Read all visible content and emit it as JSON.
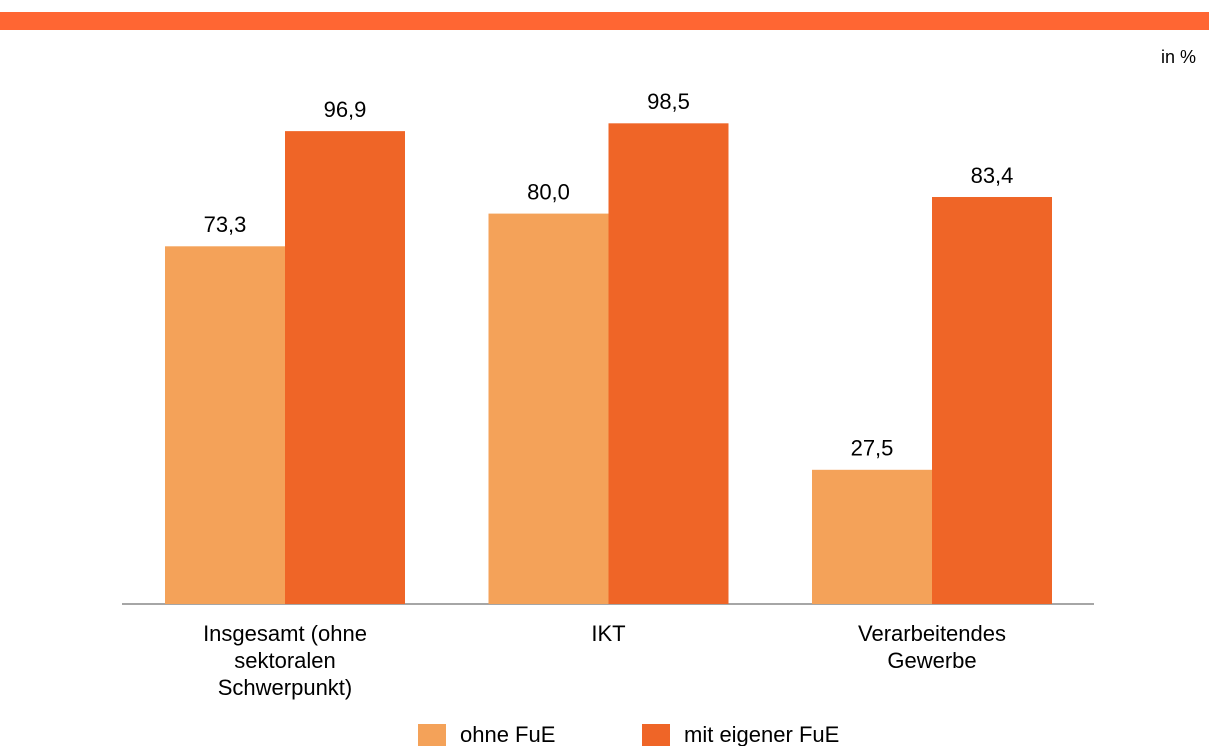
{
  "chart_data": {
    "type": "bar",
    "ylabel": "in %",
    "categories": [
      "Insgesamt (ohne sektoralen Schwerpunkt)",
      "IKT",
      "Verarbeitendes Gewerbe"
    ],
    "series": [
      {
        "name": "ohne FuE",
        "color": "#f4a259",
        "values": [
          73.3,
          80.0,
          27.5
        ],
        "value_labels": [
          "73,3",
          "80,0",
          "27,5"
        ]
      },
      {
        "name": "mit eigener FuE",
        "color": "#ef6527",
        "values": [
          96.9,
          98.5,
          83.4
        ],
        "value_labels": [
          "96,9",
          "98,5",
          "83,4"
        ]
      }
    ]
  }
}
